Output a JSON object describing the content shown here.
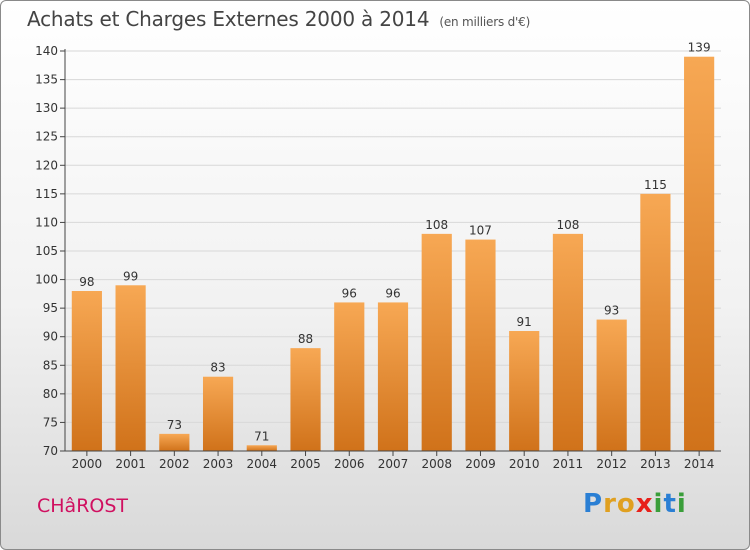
{
  "header": {
    "title": "Achats et Charges Externes 2000 à 2014",
    "subtitle": "(en milliers d'€)"
  },
  "footer": {
    "commune": "CHâROST",
    "logo": {
      "letters": [
        "P",
        "r",
        "o",
        "x",
        "i",
        "t",
        "i"
      ],
      "colors": [
        "#2a7fd4",
        "#e0a020",
        "#e0a020",
        "#e8201a",
        "#3a9e3a",
        "#2a7fd4",
        "#3a9e3a"
      ]
    }
  },
  "chart_data": {
    "type": "bar",
    "title": "Achats et Charges Externes 2000 à 2014",
    "subtitle": "(en milliers d'€)",
    "categories": [
      "2000",
      "2001",
      "2002",
      "2003",
      "2004",
      "2005",
      "2006",
      "2007",
      "2008",
      "2009",
      "2010",
      "2011",
      "2012",
      "2013",
      "2014"
    ],
    "values": [
      98,
      99,
      73,
      83,
      71,
      88,
      96,
      96,
      108,
      107,
      91,
      108,
      93,
      115,
      139
    ],
    "ylim": [
      70,
      140
    ],
    "yticks": [
      70,
      75,
      80,
      85,
      90,
      95,
      100,
      105,
      110,
      115,
      120,
      125,
      130,
      135,
      140
    ],
    "grid": true,
    "bar_color": "#f0922e",
    "data_labels": true
  }
}
